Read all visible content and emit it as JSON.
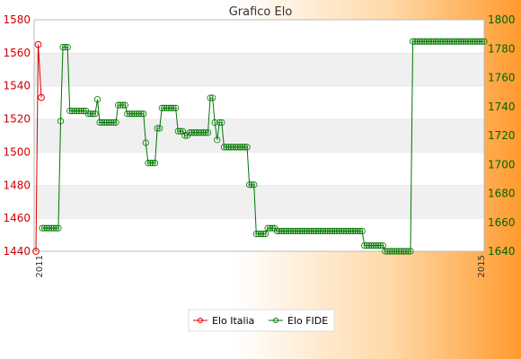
{
  "chart_data": {
    "type": "line",
    "title": "Grafico Elo",
    "legend_position": "bottom",
    "grid": true,
    "left_axis": {
      "min": 1440,
      "max": 1580,
      "ticks": [
        1440,
        1460,
        1480,
        1500,
        1520,
        1540,
        1560,
        1580
      ],
      "color": "#cc0000"
    },
    "right_axis": {
      "min": 1640,
      "max": 1800,
      "ticks": [
        1640,
        1660,
        1680,
        1700,
        1720,
        1740,
        1760,
        1780,
        1800
      ],
      "color": "#006600"
    },
    "x_tick_labels_visible": [
      "2011",
      "2015"
    ],
    "series": [
      {
        "name": "Elo Italia",
        "axis": "left",
        "color": "#dd0000",
        "values": [
          1440,
          1565,
          1533
        ]
      },
      {
        "name": "Elo FIDE",
        "axis": "right",
        "color": "#007700",
        "values": [
          1656,
          1656,
          1656,
          1656,
          1656,
          1656,
          1656,
          1656,
          1730,
          1781,
          1781,
          1781,
          1737,
          1737,
          1737,
          1737,
          1737,
          1737,
          1737,
          1737,
          1735,
          1735,
          1735,
          1735,
          1745,
          1729,
          1729,
          1729,
          1729,
          1729,
          1729,
          1729,
          1729,
          1741,
          1741,
          1741,
          1741,
          1735,
          1735,
          1735,
          1735,
          1735,
          1735,
          1735,
          1735,
          1715,
          1701,
          1701,
          1701,
          1701,
          1725,
          1725,
          1739,
          1739,
          1739,
          1739,
          1739,
          1739,
          1739,
          1723,
          1723,
          1723,
          1720,
          1720,
          1722,
          1722,
          1722,
          1722,
          1722,
          1722,
          1722,
          1722,
          1722,
          1746,
          1746,
          1729,
          1717,
          1729,
          1729,
          1712,
          1712,
          1712,
          1712,
          1712,
          1712,
          1712,
          1712,
          1712,
          1712,
          1712,
          1686,
          1686,
          1686,
          1652,
          1652,
          1652,
          1652,
          1652,
          1656,
          1656,
          1656,
          1656,
          1654,
          1654,
          1654,
          1654,
          1654,
          1654,
          1654,
          1654,
          1654,
          1654,
          1654,
          1654,
          1654,
          1654,
          1654,
          1654,
          1654,
          1654,
          1654,
          1654,
          1654,
          1654,
          1654,
          1654,
          1654,
          1654,
          1654,
          1654,
          1654,
          1654,
          1654,
          1654,
          1654,
          1654,
          1654,
          1654,
          1654,
          1654,
          1644,
          1644,
          1644,
          1644,
          1644,
          1644,
          1644,
          1644,
          1644,
          1640,
          1640,
          1640,
          1640,
          1640,
          1640,
          1640,
          1640,
          1640,
          1640,
          1640,
          1640,
          1785,
          1785,
          1785,
          1785,
          1785,
          1785,
          1785,
          1785,
          1785,
          1785,
          1785,
          1785,
          1785,
          1785,
          1785,
          1785,
          1785,
          1785,
          1785,
          1785,
          1785,
          1785,
          1785,
          1785,
          1785,
          1785,
          1785,
          1785,
          1785,
          1785,
          1785,
          1785
        ]
      }
    ]
  }
}
